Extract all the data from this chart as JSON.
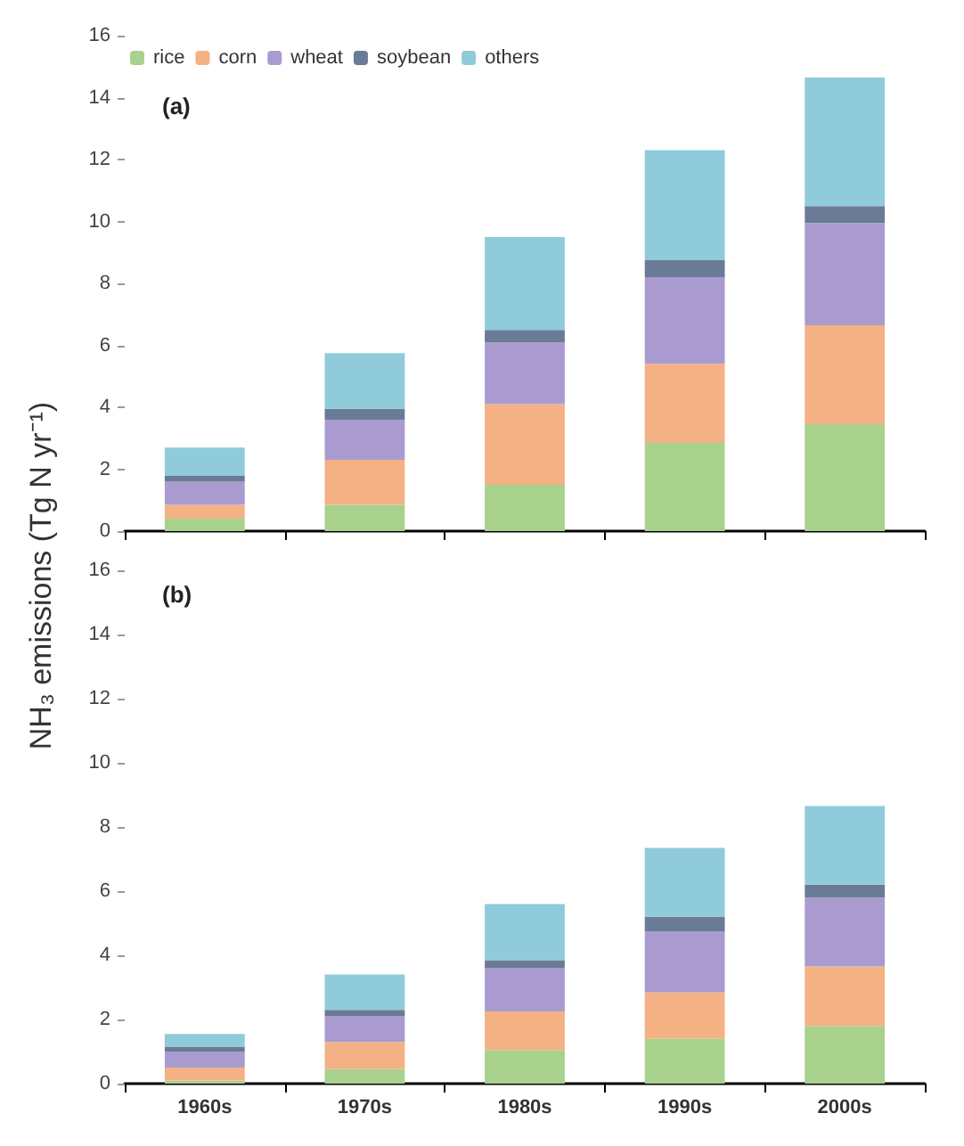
{
  "chart_data": [
    {
      "type": "bar",
      "title": "(a)",
      "ylabel": "NH₃ emissions (Tg N yr⁻¹)",
      "stacked": true,
      "categories": [
        null,
        null,
        null,
        null,
        null
      ],
      "series": [
        {
          "name": "rice",
          "color": "#a9d18e",
          "values": [
            0.4,
            0.85,
            1.5,
            2.85,
            3.45
          ]
        },
        {
          "name": "corn",
          "color": "#f4b183",
          "values": [
            0.45,
            1.45,
            2.6,
            2.55,
            3.2
          ]
        },
        {
          "name": "wheat",
          "color": "#a99bd0",
          "values": [
            0.75,
            1.3,
            2.0,
            2.8,
            3.3
          ]
        },
        {
          "name": "soybean",
          "color": "#6b7b95",
          "values": [
            0.2,
            0.35,
            0.4,
            0.55,
            0.55
          ]
        },
        {
          "name": "others",
          "color": "#8fcbdb",
          "values": [
            0.9,
            1.8,
            3.0,
            3.55,
            4.15
          ]
        }
      ],
      "ylim": [
        0,
        16
      ],
      "yticks": [
        0,
        2,
        4,
        6,
        8,
        10,
        12,
        14,
        16
      ],
      "tick_labels": "y",
      "legend": "top left",
      "grid": false
    },
    {
      "type": "bar",
      "title": "(b)",
      "stacked": true,
      "categories": [
        "1960s",
        "1970s",
        "1980s",
        "1990s",
        "2000s"
      ],
      "series": [
        {
          "color": "#a9d18e",
          "values": [
            0.1,
            0.45,
            1.05,
            1.4,
            1.8
          ]
        },
        {
          "color": "#f4b183",
          "values": [
            0.4,
            0.85,
            1.2,
            1.45,
            1.85
          ]
        },
        {
          "color": "#a99bd0",
          "values": [
            0.5,
            0.8,
            1.35,
            1.9,
            2.15
          ]
        },
        {
          "color": "#6b7b95",
          "values": [
            0.15,
            0.2,
            0.25,
            0.45,
            0.4
          ]
        },
        {
          "color": "#8fcbdb",
          "values": [
            0.4,
            1.1,
            1.75,
            2.15,
            2.45
          ]
        }
      ],
      "ylim": [
        0,
        16
      ],
      "yticks": [
        0,
        2,
        4,
        6,
        8,
        10,
        12,
        14,
        16
      ],
      "grid": false
    }
  ]
}
